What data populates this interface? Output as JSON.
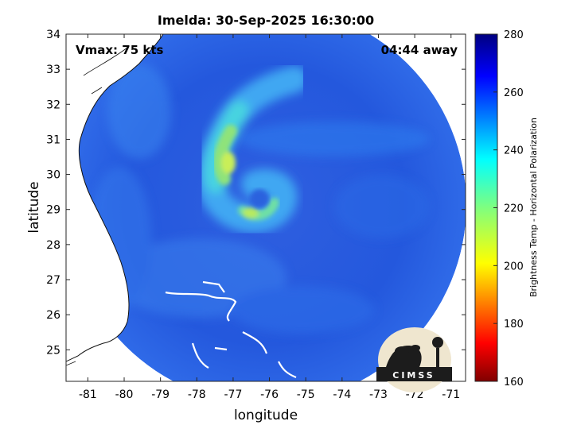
{
  "title": "Imelda: 30-Sep-2025 16:30:00",
  "vmax_label": "Vmax: 75 kts",
  "away_label": "04:44 away",
  "xlabel": "longitude",
  "ylabel": "latitude",
  "logo_text": "CIMSS",
  "map": {
    "lon_range": [
      -81.6,
      -70.6
    ],
    "lat_range": [
      24.1,
      34.0
    ],
    "lon_ticks": [
      -81,
      -80,
      -79,
      -78,
      -77,
      -76,
      -75,
      -74,
      -73,
      -72,
      -71
    ],
    "lat_ticks": [
      25,
      26,
      27,
      28,
      29,
      30,
      31,
      32,
      33,
      34
    ],
    "swath_center": [
      -76.1,
      29.3
    ],
    "storm_center": [
      -76.1,
      29.2
    ],
    "background_temp_K": 258
  },
  "colorbar": {
    "label": "Brightness Temp - Horizontal Polarization",
    "range": [
      160,
      280
    ],
    "ticks": [
      160,
      180,
      200,
      220,
      240,
      260,
      280
    ],
    "colormap": "jet"
  },
  "colors": {
    "deep": "#1f4fd2",
    "swath_edge": "#2b66e6",
    "land": "#ffffff",
    "coast": "#111111"
  }
}
